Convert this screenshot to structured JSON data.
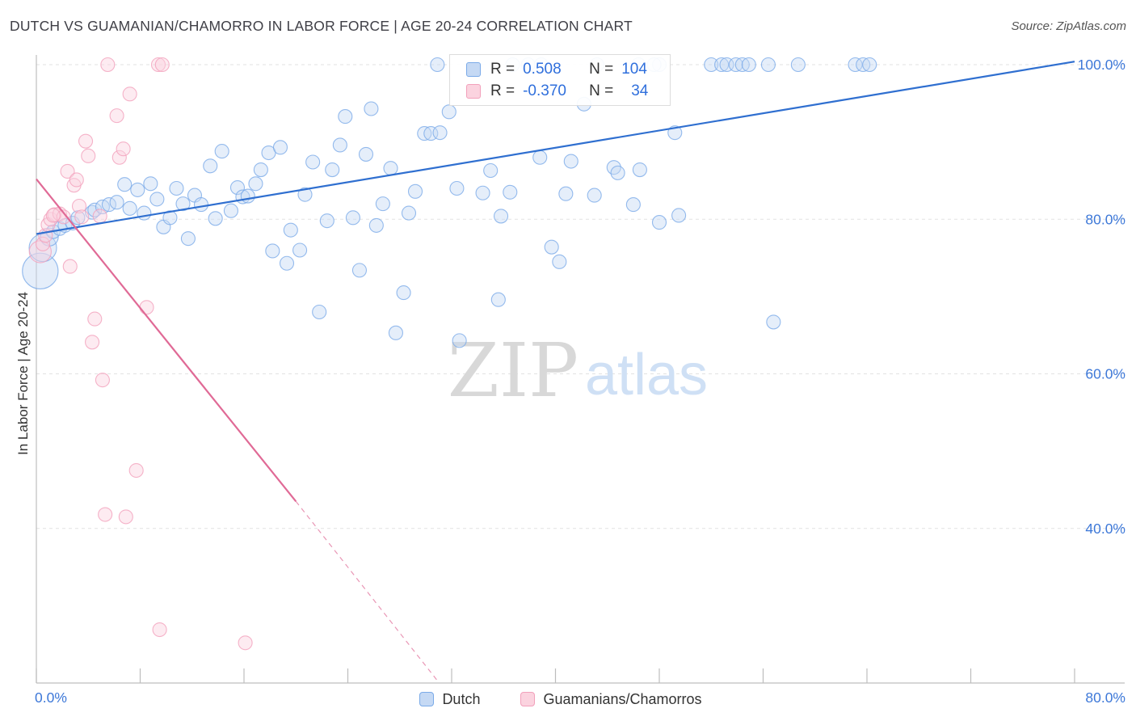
{
  "header": {
    "title": "DUTCH VS GUAMANIAN/CHAMORRO IN LABOR FORCE | AGE 20-24 CORRELATION CHART",
    "source": "Source: ZipAtlas.com"
  },
  "watermark": {
    "part1": "ZIP",
    "part2": "atlas"
  },
  "legend_top": {
    "rows": [
      {
        "r_label": "R =",
        "r_value": "0.508",
        "n_label": "N =",
        "n_value": "104"
      },
      {
        "r_label": "R =",
        "r_value": "-0.370",
        "n_label": "N =",
        "n_value": "34"
      }
    ]
  },
  "chart_data": {
    "type": "scatter",
    "title": "DUTCH VS GUAMANIAN/CHAMORRO IN LABOR FORCE | AGE 20-24 CORRELATION CHART",
    "xlabel": "",
    "ylabel": "In Labor Force | Age 20-24",
    "xlim": [
      0,
      80
    ],
    "ylim": [
      20,
      100
    ],
    "x_tick_labels": [
      "0.0%",
      "80.0%"
    ],
    "y_ticks": [
      40,
      60,
      80,
      100
    ],
    "y_tick_labels": [
      "40.0%",
      "60.0%",
      "80.0%",
      "100.0%"
    ],
    "grid": true,
    "legend_position": "bottom",
    "colors": {
      "dutch": "#7aaae8",
      "dutch_line": "#2f6fd0",
      "guam": "#f2a0bb",
      "guam_line": "#e06a96",
      "axis_text": "#3d78d8"
    },
    "series": [
      {
        "name": "Dutch",
        "R": 0.508,
        "N": 104,
        "trend": {
          "x": [
            0,
            80
          ],
          "y": [
            78.1,
            100.4
          ]
        },
        "points": [
          [
            0.3,
            73.3
          ],
          [
            0.5,
            76.3
          ],
          [
            1.0,
            77.7
          ],
          [
            1.3,
            78.4
          ],
          [
            1.8,
            78.8
          ],
          [
            2.2,
            79.2
          ],
          [
            2.8,
            79.5
          ],
          [
            3.2,
            80.2
          ],
          [
            4.3,
            80.9
          ],
          [
            4.5,
            81.2
          ],
          [
            5.1,
            81.6
          ],
          [
            5.6,
            81.9
          ],
          [
            6.2,
            82.2
          ],
          [
            6.8,
            84.5
          ],
          [
            7.2,
            81.4
          ],
          [
            7.8,
            83.8
          ],
          [
            8.3,
            80.8
          ],
          [
            8.8,
            84.6
          ],
          [
            9.3,
            82.6
          ],
          [
            9.8,
            79.0
          ],
          [
            10.3,
            80.2
          ],
          [
            10.8,
            84.0
          ],
          [
            11.3,
            82.0
          ],
          [
            11.7,
            77.5
          ],
          [
            12.2,
            83.1
          ],
          [
            12.7,
            81.9
          ],
          [
            13.4,
            86.9
          ],
          [
            13.8,
            80.1
          ],
          [
            14.3,
            88.8
          ],
          [
            15.0,
            81.1
          ],
          [
            15.5,
            84.1
          ],
          [
            15.9,
            82.9
          ],
          [
            16.3,
            83.0
          ],
          [
            16.9,
            84.6
          ],
          [
            17.3,
            86.4
          ],
          [
            17.9,
            88.6
          ],
          [
            18.2,
            75.9
          ],
          [
            18.8,
            89.3
          ],
          [
            19.3,
            74.3
          ],
          [
            19.6,
            78.6
          ],
          [
            20.3,
            76.0
          ],
          [
            20.7,
            83.2
          ],
          [
            21.3,
            87.4
          ],
          [
            21.8,
            68.0
          ],
          [
            22.4,
            79.8
          ],
          [
            22.8,
            86.4
          ],
          [
            23.4,
            89.6
          ],
          [
            23.8,
            93.3
          ],
          [
            24.4,
            80.2
          ],
          [
            24.9,
            73.4
          ],
          [
            25.4,
            88.4
          ],
          [
            25.8,
            94.3
          ],
          [
            26.2,
            79.2
          ],
          [
            26.7,
            82.0
          ],
          [
            27.3,
            86.6
          ],
          [
            27.7,
            65.3
          ],
          [
            28.3,
            70.5
          ],
          [
            28.7,
            80.8
          ],
          [
            29.2,
            83.6
          ],
          [
            29.9,
            91.1
          ],
          [
            30.4,
            91.1
          ],
          [
            31.1,
            91.2
          ],
          [
            31.8,
            93.9
          ],
          [
            32.4,
            84.0
          ],
          [
            32.6,
            64.3
          ],
          [
            34.4,
            83.4
          ],
          [
            35.0,
            86.3
          ],
          [
            35.6,
            69.6
          ],
          [
            35.8,
            80.4
          ],
          [
            36.5,
            83.5
          ],
          [
            38.8,
            88.0
          ],
          [
            39.7,
            76.4
          ],
          [
            40.3,
            74.5
          ],
          [
            40.8,
            83.3
          ],
          [
            41.2,
            87.5
          ],
          [
            42.2,
            94.9
          ],
          [
            43.0,
            83.1
          ],
          [
            44.5,
            86.7
          ],
          [
            44.8,
            86.0
          ],
          [
            46.0,
            81.9
          ],
          [
            46.5,
            86.4
          ],
          [
            48.0,
            79.6
          ],
          [
            49.2,
            91.2
          ],
          [
            49.5,
            80.5
          ],
          [
            56.8,
            66.7
          ],
          [
            30.9,
            100
          ],
          [
            36.7,
            100
          ],
          [
            37.9,
            100
          ],
          [
            43.2,
            100
          ],
          [
            48.0,
            100
          ],
          [
            52.0,
            100
          ],
          [
            52.8,
            100
          ],
          [
            53.2,
            100
          ],
          [
            53.9,
            100
          ],
          [
            54.4,
            100
          ],
          [
            54.9,
            100
          ],
          [
            56.4,
            100
          ],
          [
            58.7,
            100
          ],
          [
            63.1,
            100
          ],
          [
            63.7,
            100
          ],
          [
            64.2,
            100
          ],
          [
            38.9,
            100
          ],
          [
            46.4,
            100
          ],
          [
            47.6,
            100
          ]
        ],
        "point_sizes": {
          "0": 2.6,
          "1": 2.0,
          "2": 1.3
        }
      },
      {
        "name": "Guamanians/Chamorros",
        "R": -0.37,
        "N": 34,
        "trend": {
          "x": [
            0,
            20
          ],
          "y": [
            85.2,
            43.5
          ]
        },
        "trend_dashed": {
          "x": [
            20,
            31
          ],
          "y": [
            43.5,
            20.1
          ]
        },
        "points": [
          [
            0.3,
            75.8
          ],
          [
            0.5,
            76.8
          ],
          [
            0.7,
            77.9
          ],
          [
            0.9,
            79.3
          ],
          [
            1.1,
            80.0
          ],
          [
            1.4,
            80.6
          ],
          [
            1.8,
            80.7
          ],
          [
            2.1,
            80.3
          ],
          [
            2.4,
            86.2
          ],
          [
            2.6,
            73.9
          ],
          [
            2.9,
            84.4
          ],
          [
            3.1,
            85.1
          ],
          [
            3.3,
            81.7
          ],
          [
            3.5,
            80.3
          ],
          [
            3.8,
            90.1
          ],
          [
            4.0,
            88.2
          ],
          [
            4.3,
            64.1
          ],
          [
            4.5,
            67.1
          ],
          [
            4.9,
            80.4
          ],
          [
            5.1,
            59.2
          ],
          [
            5.5,
            100
          ],
          [
            6.2,
            93.4
          ],
          [
            6.4,
            88.0
          ],
          [
            6.7,
            89.1
          ],
          [
            6.9,
            41.5
          ],
          [
            7.2,
            96.2
          ],
          [
            7.7,
            47.5
          ],
          [
            8.5,
            68.6
          ],
          [
            9.4,
            100
          ],
          [
            9.7,
            100
          ],
          [
            5.3,
            41.8
          ],
          [
            9.5,
            26.9
          ],
          [
            16.1,
            25.2
          ],
          [
            1.3,
            80.5
          ]
        ],
        "point_sizes": {
          "0": 1.6
        }
      }
    ]
  },
  "bottom_legend": {
    "items": [
      {
        "label": "Dutch"
      },
      {
        "label": "Guamanians/Chamorros"
      }
    ]
  }
}
